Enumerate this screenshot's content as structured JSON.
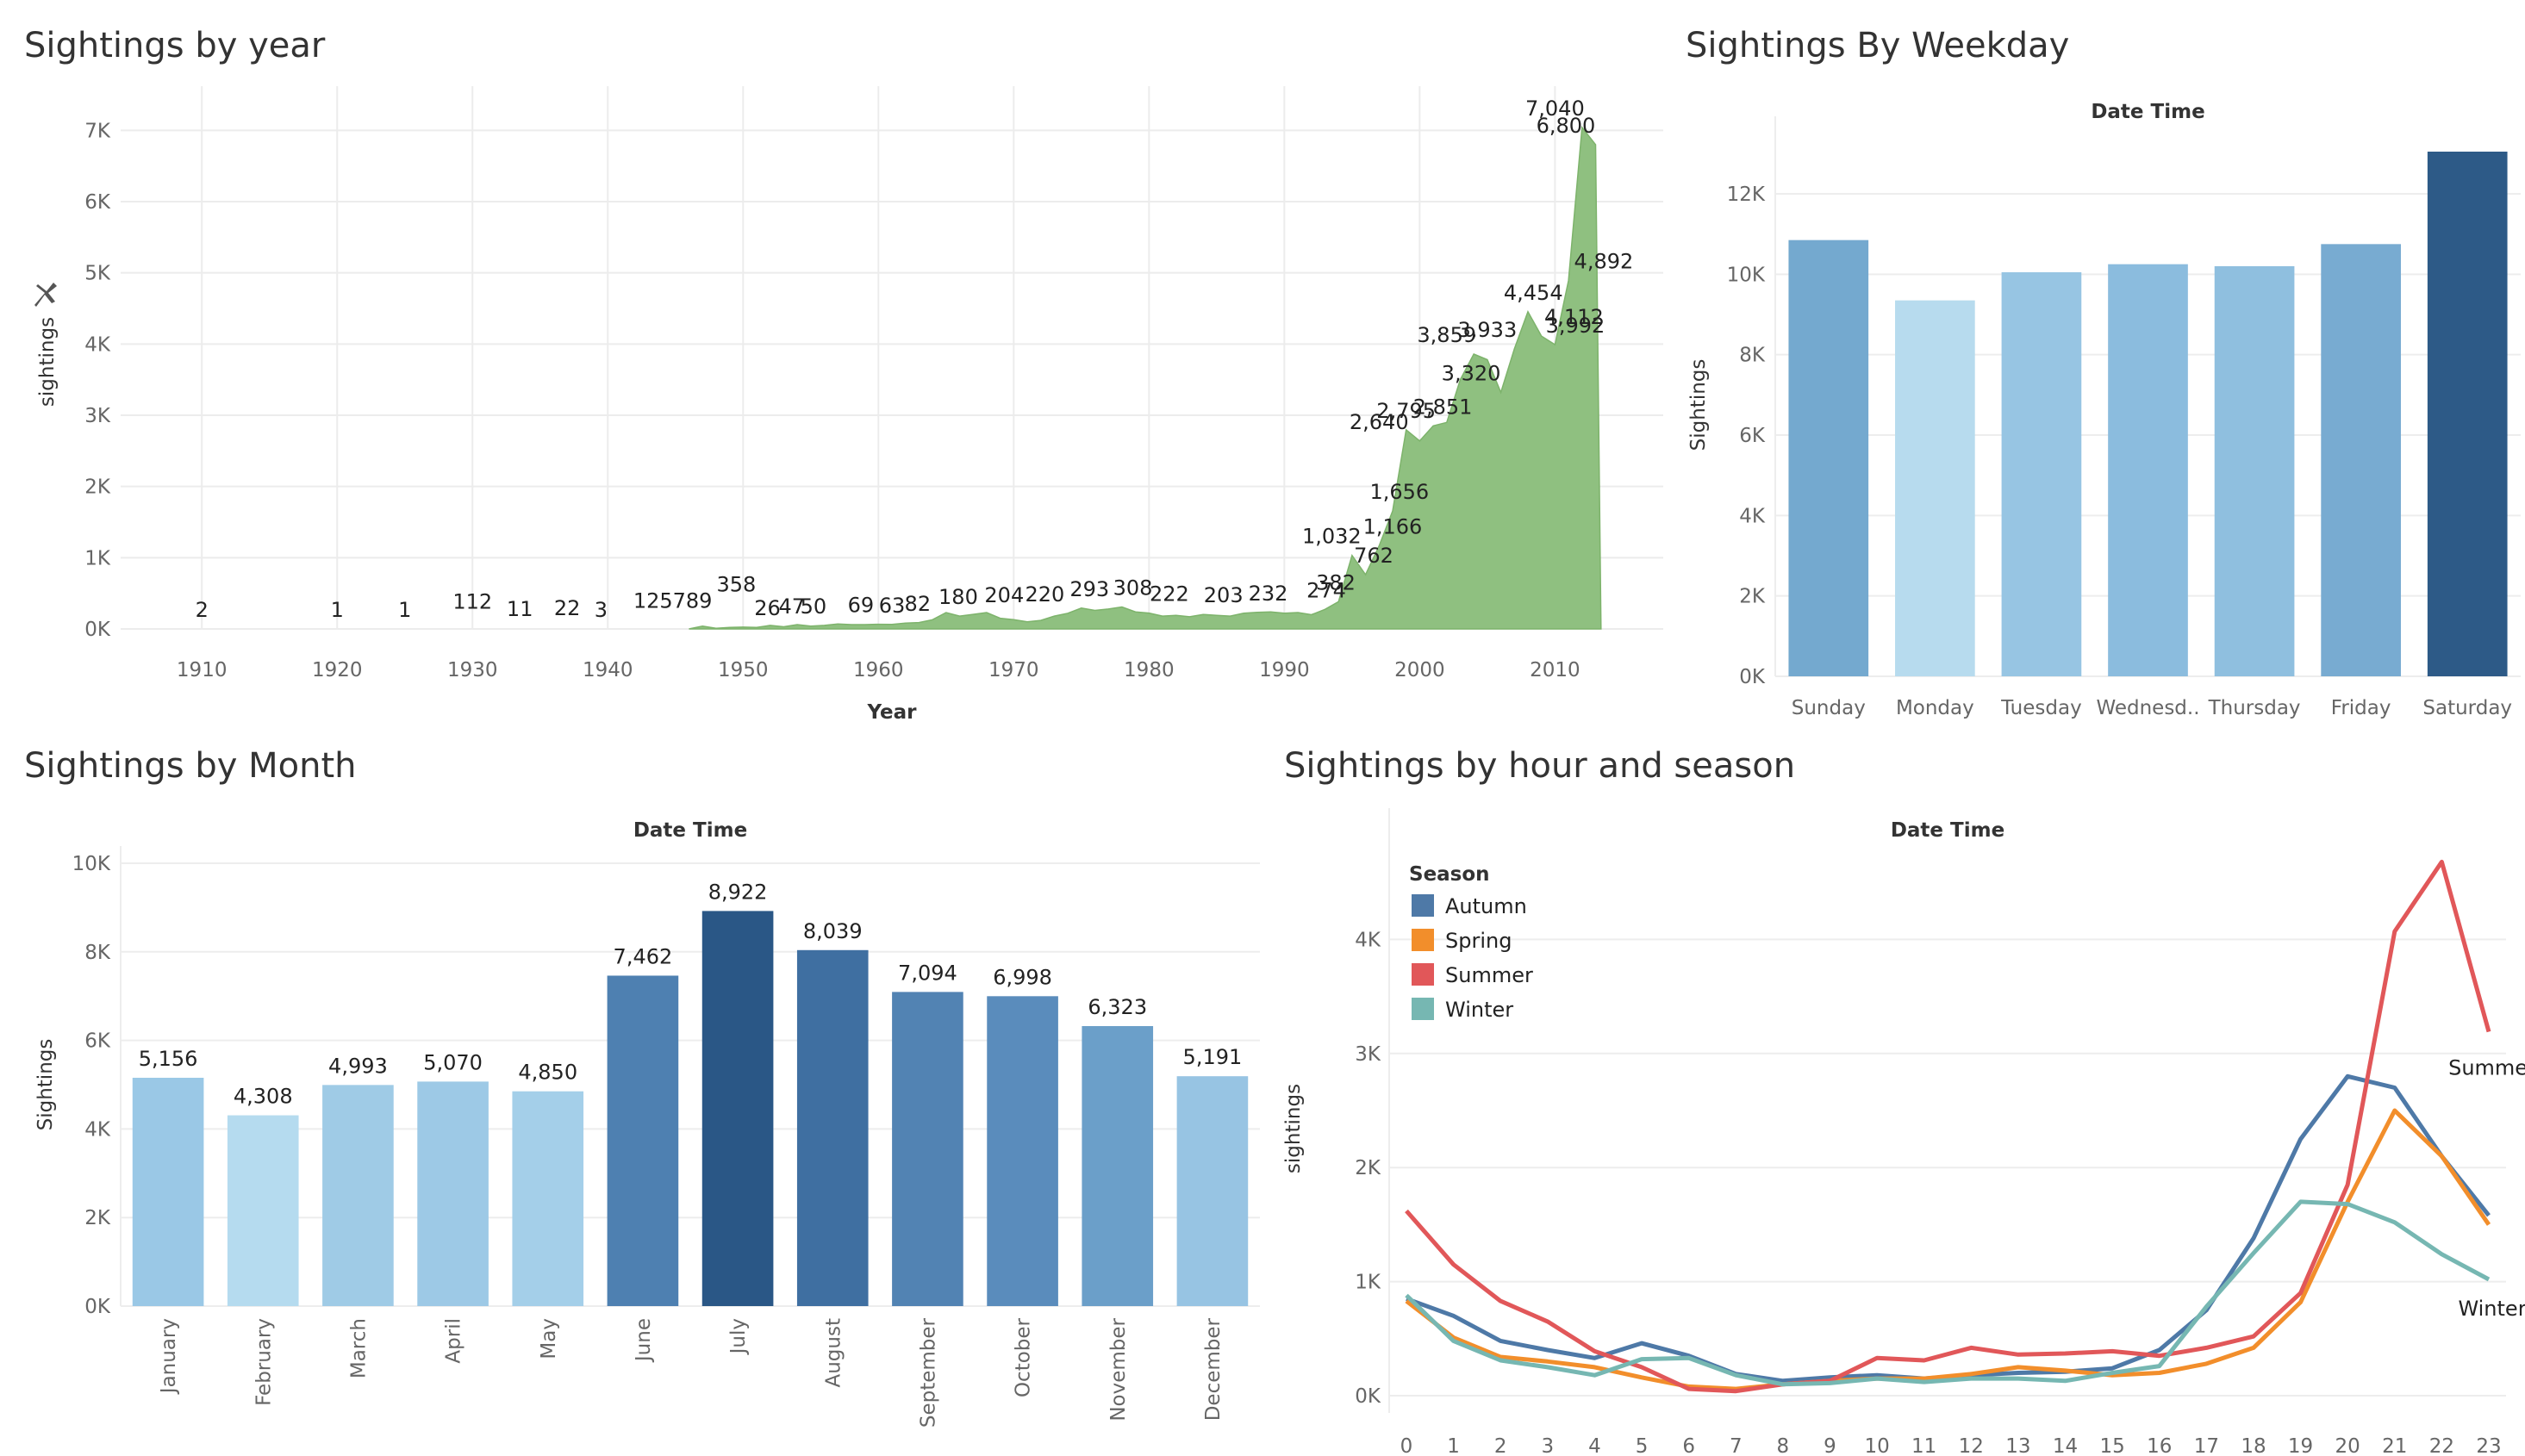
{
  "chart_data": [
    {
      "type": "area",
      "title": "Sightings by year",
      "xlabel": "Year",
      "ylabel": "sightings",
      "color": "#8fc080",
      "xlim": [
        1904,
        2018
      ],
      "ylim": [
        0,
        7500
      ],
      "x_ticks": [
        1910,
        1920,
        1930,
        1940,
        1950,
        1960,
        1970,
        1980,
        1990,
        2000,
        2010
      ],
      "y_ticks": [
        {
          "v": 0,
          "label": "0K"
        },
        {
          "v": 1000,
          "label": "1K"
        },
        {
          "v": 2000,
          "label": "2K"
        },
        {
          "v": 3000,
          "label": "3K"
        },
        {
          "v": 4000,
          "label": "4K"
        },
        {
          "v": 5000,
          "label": "5K"
        },
        {
          "v": 6000,
          "label": "6K"
        },
        {
          "v": 7000,
          "label": "7K"
        }
      ],
      "points": [
        {
          "x": 1946,
          "y": 0
        },
        {
          "x": 1947,
          "y": 40
        },
        {
          "x": 1948,
          "y": 10
        },
        {
          "x": 1949,
          "y": 20
        },
        {
          "x": 1950,
          "y": 26
        },
        {
          "x": 1951,
          "y": 20
        },
        {
          "x": 1952,
          "y": 50
        },
        {
          "x": 1953,
          "y": 30
        },
        {
          "x": 1954,
          "y": 60
        },
        {
          "x": 1955,
          "y": 40
        },
        {
          "x": 1956,
          "y": 50
        },
        {
          "x": 1957,
          "y": 70
        },
        {
          "x": 1958,
          "y": 60
        },
        {
          "x": 1959,
          "y": 60
        },
        {
          "x": 1960,
          "y": 65
        },
        {
          "x": 1961,
          "y": 63
        },
        {
          "x": 1962,
          "y": 82
        },
        {
          "x": 1963,
          "y": 90
        },
        {
          "x": 1964,
          "y": 130
        },
        {
          "x": 1965,
          "y": 230
        },
        {
          "x": 1966,
          "y": 180
        },
        {
          "x": 1967,
          "y": 204
        },
        {
          "x": 1968,
          "y": 230
        },
        {
          "x": 1969,
          "y": 150
        },
        {
          "x": 1970,
          "y": 130
        },
        {
          "x": 1971,
          "y": 100
        },
        {
          "x": 1972,
          "y": 120
        },
        {
          "x": 1973,
          "y": 180
        },
        {
          "x": 1974,
          "y": 220
        },
        {
          "x": 1975,
          "y": 293
        },
        {
          "x": 1976,
          "y": 260
        },
        {
          "x": 1977,
          "y": 280
        },
        {
          "x": 1978,
          "y": 308
        },
        {
          "x": 1979,
          "y": 240
        },
        {
          "x": 1980,
          "y": 222
        },
        {
          "x": 1981,
          "y": 180
        },
        {
          "x": 1982,
          "y": 190
        },
        {
          "x": 1983,
          "y": 170
        },
        {
          "x": 1984,
          "y": 203
        },
        {
          "x": 1985,
          "y": 190
        },
        {
          "x": 1986,
          "y": 180
        },
        {
          "x": 1987,
          "y": 220
        },
        {
          "x": 1988,
          "y": 232
        },
        {
          "x": 1989,
          "y": 240
        },
        {
          "x": 1990,
          "y": 220
        },
        {
          "x": 1991,
          "y": 230
        },
        {
          "x": 1992,
          "y": 200
        },
        {
          "x": 1993,
          "y": 274
        },
        {
          "x": 1994,
          "y": 382
        },
        {
          "x": 1995,
          "y": 1032
        },
        {
          "x": 1996,
          "y": 762
        },
        {
          "x": 1997,
          "y": 1166
        },
        {
          "x": 1998,
          "y": 1656
        },
        {
          "x": 1999,
          "y": 2795
        },
        {
          "x": 2000,
          "y": 2640
        },
        {
          "x": 2001,
          "y": 2851
        },
        {
          "x": 2002,
          "y": 2900
        },
        {
          "x": 2003,
          "y": 3500
        },
        {
          "x": 2004,
          "y": 3859
        },
        {
          "x": 2005,
          "y": 3780
        },
        {
          "x": 2006,
          "y": 3320
        },
        {
          "x": 2007,
          "y": 3933
        },
        {
          "x": 2008,
          "y": 4454
        },
        {
          "x": 2009,
          "y": 4112
        },
        {
          "x": 2010,
          "y": 3992
        },
        {
          "x": 2011,
          "y": 4892
        },
        {
          "x": 2012,
          "y": 7040
        },
        {
          "x": 2013,
          "y": 6800
        },
        {
          "x": 2013.4,
          "y": 0
        }
      ],
      "labels": [
        {
          "x": 1910,
          "y": 2,
          "text": "2"
        },
        {
          "x": 1920,
          "y": 1,
          "text": "1"
        },
        {
          "x": 1925,
          "y": 1,
          "text": "1"
        },
        {
          "x": 1930,
          "y": 112,
          "text": "112"
        },
        {
          "x": 1933.5,
          "y": 11,
          "text": "11"
        },
        {
          "x": 1937,
          "y": 22,
          "text": "22"
        },
        {
          "x": 1939.5,
          "y": 3,
          "text": "3"
        },
        {
          "x": 1944.8,
          "y": 125,
          "text": "125789"
        },
        {
          "x": 1949.5,
          "y": 358,
          "text": "358"
        },
        {
          "x": 1951.8,
          "y": 26,
          "text": "26"
        },
        {
          "x": 1953.6,
          "y": 47,
          "text": "47"
        },
        {
          "x": 1955.2,
          "y": 50,
          "text": "50"
        },
        {
          "x": 1958.7,
          "y": 69,
          "text": "69"
        },
        {
          "x": 1961,
          "y": 63,
          "text": "63"
        },
        {
          "x": 1962.9,
          "y": 82,
          "text": "82"
        },
        {
          "x": 1965.9,
          "y": 180,
          "text": "180"
        },
        {
          "x": 1969.3,
          "y": 204,
          "text": "204"
        },
        {
          "x": 1972.3,
          "y": 220,
          "text": "220"
        },
        {
          "x": 1975.6,
          "y": 293,
          "text": "293"
        },
        {
          "x": 1978.8,
          "y": 308,
          "text": "308"
        },
        {
          "x": 1981.5,
          "y": 222,
          "text": "222"
        },
        {
          "x": 1985.5,
          "y": 203,
          "text": "203"
        },
        {
          "x": 1988.8,
          "y": 232,
          "text": "232"
        },
        {
          "x": 1993.1,
          "y": 274,
          "text": "274"
        },
        {
          "x": 1993.8,
          "y": 382,
          "text": "382"
        },
        {
          "x": 1993.5,
          "y": 1032,
          "text": "1,032"
        },
        {
          "x": 1996.6,
          "y": 762,
          "text": "762"
        },
        {
          "x": 1998,
          "y": 1166,
          "text": "1,166"
        },
        {
          "x": 1998.5,
          "y": 1656,
          "text": "1,656"
        },
        {
          "x": 1997,
          "y": 2640,
          "text": "2,640"
        },
        {
          "x": 1999,
          "y": 2795,
          "text": "2,795"
        },
        {
          "x": 2001.7,
          "y": 2851,
          "text": "2,851"
        },
        {
          "x": 2003.8,
          "y": 3320,
          "text": "3,320"
        },
        {
          "x": 2002,
          "y": 3859,
          "text": "3,859"
        },
        {
          "x": 2005,
          "y": 3933,
          "text": "3,933"
        },
        {
          "x": 2008.4,
          "y": 4454,
          "text": "4,454"
        },
        {
          "x": 2011.4,
          "y": 4112,
          "text": "4,112"
        },
        {
          "x": 2011.5,
          "y": 3992,
          "text": "3,992"
        },
        {
          "x": 2013.6,
          "y": 4892,
          "text": "4,892"
        },
        {
          "x": 2010,
          "y": 7040,
          "text": "7,040"
        },
        {
          "x": 2010.8,
          "y": 6800,
          "text": "6,800"
        }
      ]
    },
    {
      "type": "bar",
      "title": "Sightings By Weekday",
      "header": "Date Time",
      "ylabel": "Sightings",
      "ylim": [
        0,
        13500
      ],
      "y_ticks": [
        {
          "v": 0,
          "label": "0K"
        },
        {
          "v": 2000,
          "label": "2K"
        },
        {
          "v": 4000,
          "label": "4K"
        },
        {
          "v": 6000,
          "label": "6K"
        },
        {
          "v": 8000,
          "label": "8K"
        },
        {
          "v": 10000,
          "label": "10K"
        },
        {
          "v": 12000,
          "label": "12K"
        }
      ],
      "categories": [
        "Sunday",
        "Monday",
        "Tuesday",
        "Wednesd..",
        "Thursday",
        "Friday",
        "Saturday"
      ],
      "values": [
        10850,
        9350,
        10050,
        10250,
        10200,
        10750,
        13050
      ],
      "colors": [
        "#74a9cf",
        "#b7dbee",
        "#97c5e3",
        "#8bbcde",
        "#8fbfdf",
        "#78abd1",
        "#2d5a87"
      ]
    },
    {
      "type": "bar",
      "title": "Sightings by Month",
      "header": "Date Time",
      "ylabel": "Sightings",
      "ylim": [
        0,
        10000
      ],
      "y_ticks": [
        {
          "v": 0,
          "label": "0K"
        },
        {
          "v": 2000,
          "label": "2K"
        },
        {
          "v": 4000,
          "label": "4K"
        },
        {
          "v": 6000,
          "label": "6K"
        },
        {
          "v": 8000,
          "label": "8K"
        },
        {
          "v": 10000,
          "label": "10K"
        }
      ],
      "categories": [
        "January",
        "February",
        "March",
        "April",
        "May",
        "June",
        "July",
        "August",
        "September",
        "October",
        "November",
        "December"
      ],
      "values": [
        5156,
        4308,
        4993,
        5070,
        4850,
        7462,
        8922,
        8039,
        7094,
        6998,
        6323,
        5191
      ],
      "value_labels": [
        "5,156",
        "4,308",
        "4,993",
        "5,070",
        "4,850",
        "7,462",
        "8,922",
        "8,039",
        "7,094",
        "6,998",
        "6,323",
        "5,191"
      ],
      "colors": [
        "#9ac8e6",
        "#b5dbef",
        "#9fcbe6",
        "#9dc9e6",
        "#a4cfe9",
        "#4e80b1",
        "#2a5786",
        "#3f6fa1",
        "#5283b3",
        "#5a8cbc",
        "#6b9fc9",
        "#97c4e3"
      ]
    },
    {
      "type": "line",
      "title": "Sightings by hour and season",
      "header": "Date Time",
      "ylabel": "sightings",
      "legend_title": "Season",
      "legend_position": "top-left",
      "xlim": [
        0,
        23
      ],
      "ylim": [
        0,
        5000
      ],
      "y_ticks": [
        {
          "v": 0,
          "label": "0K"
        },
        {
          "v": 1000,
          "label": "1K"
        },
        {
          "v": 2000,
          "label": "2K"
        },
        {
          "v": 3000,
          "label": "3K"
        },
        {
          "v": 4000,
          "label": "4K"
        }
      ],
      "x": [
        0,
        1,
        2,
        3,
        4,
        5,
        6,
        7,
        8,
        9,
        10,
        11,
        12,
        13,
        14,
        15,
        16,
        17,
        18,
        19,
        20,
        21,
        22,
        23
      ],
      "series": [
        {
          "name": "Autumn",
          "color": "#4e79a7",
          "values": [
            850,
            700,
            480,
            400,
            330,
            460,
            350,
            190,
            130,
            160,
            180,
            150,
            180,
            200,
            210,
            240,
            400,
            750,
            1380,
            2250,
            2800,
            2700,
            2100,
            1580
          ]
        },
        {
          "name": "Spring",
          "color": "#f28e2b",
          "values": [
            830,
            510,
            340,
            300,
            250,
            160,
            80,
            60,
            100,
            130,
            150,
            150,
            190,
            250,
            220,
            180,
            200,
            280,
            420,
            820,
            1700,
            2500,
            2100,
            1500
          ]
        },
        {
          "name": "Summer",
          "color": "#e15759",
          "values": [
            1620,
            1150,
            830,
            650,
            390,
            250,
            60,
            40,
            100,
            130,
            330,
            310,
            420,
            360,
            370,
            390,
            350,
            420,
            520,
            900,
            1850,
            4070,
            4680,
            3190
          ]
        },
        {
          "name": "Winter",
          "color": "#76b7b2",
          "values": [
            880,
            480,
            310,
            250,
            180,
            320,
            330,
            180,
            100,
            110,
            150,
            120,
            150,
            150,
            130,
            200,
            260,
            780,
            1250,
            1700,
            1680,
            1520,
            1240,
            1020
          ]
        }
      ],
      "end_labels": [
        {
          "series": "Summer",
          "text": "Summer"
        },
        {
          "series": "Winter",
          "text": "Winter"
        }
      ]
    }
  ]
}
